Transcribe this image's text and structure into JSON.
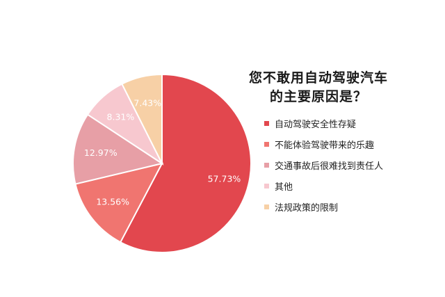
{
  "chart_data": {
    "type": "pie",
    "title_lines": [
      "您不敢用自动驾驶汽车",
      "的主要原因是？"
    ],
    "legend_position": "right",
    "slices": [
      {
        "label": "自动驾驶安全性存疑",
        "value": 57.73,
        "value_label": "57.73%",
        "color": "#e2474e"
      },
      {
        "label": "不能体验驾驶带来的乐趣",
        "value": 13.56,
        "value_label": "13.56%",
        "color": "#f07570"
      },
      {
        "label": "交通事故后很难找到责任人",
        "value": 12.97,
        "value_label": "12.97%",
        "color": "#e79fa6"
      },
      {
        "label": "其他",
        "value": 8.31,
        "value_label": "8.31%",
        "color": "#f7c8cf"
      },
      {
        "label": "法规政策的限制",
        "value": 7.43,
        "value_label": "7.43%",
        "color": "#f7d0a6"
      }
    ]
  }
}
